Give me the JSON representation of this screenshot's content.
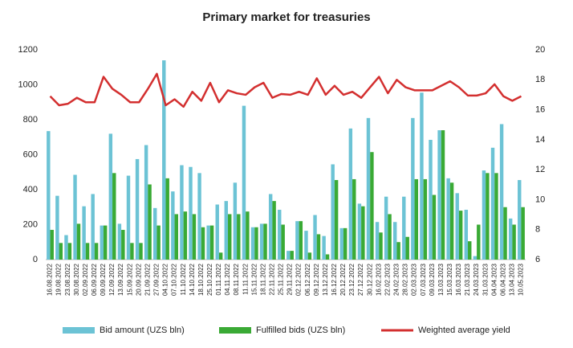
{
  "chart_data": {
    "type": "bar",
    "title": "Primary market for treasuries",
    "categories": [
      "16.08.2022",
      "19.08.2022",
      "23.08.2022",
      "30.08.2022",
      "02.09.2022",
      "06.09.2022",
      "09.09.2022",
      "12.09.2022",
      "13.09.2022",
      "15.09.2022",
      "20.09.2022",
      "21.09.2022",
      "27.09.2022",
      "04.10.2022",
      "07.10.2022",
      "11.10.2022",
      "14.10.2022",
      "18.10.2022",
      "25.10.2022",
      "01.11.2022",
      "04.11.2022",
      "08.11.2022",
      "11.11.2022",
      "15.11.2022",
      "18.11.2022",
      "22.11.2022",
      "25.11.2022",
      "29.11.2022",
      "02.12.2022",
      "06.12.2022",
      "09.12.2022",
      "13.12.2022",
      "16.12.2022",
      "20.12.2022",
      "23.12.2022",
      "27.12.2022",
      "30.12.2022",
      "16.02.2023",
      "22.02.2023",
      "24.02.2023",
      "28.02.2023",
      "02.03.2023",
      "07.03.2023",
      "09.03.2023",
      "13.03.2023",
      "15.03.2023",
      "16.03.2023",
      "21.03.2023",
      "24.03.2023",
      "31.03.2023",
      "04.04.2023",
      "06.04.2023",
      "13.04.2023",
      "10.05.2023"
    ],
    "series": [
      {
        "name": "Bid amount (UZS bln)",
        "color": "#6cc3d5",
        "values": [
          735,
          365,
          140,
          485,
          305,
          375,
          195,
          720,
          205,
          480,
          575,
          655,
          295,
          1140,
          390,
          540,
          530,
          495,
          195,
          315,
          335,
          440,
          880,
          185,
          205,
          375,
          285,
          50,
          220,
          165,
          255,
          135,
          545,
          180,
          750,
          320,
          810,
          215,
          360,
          215,
          360,
          810,
          955,
          685,
          740,
          465,
          380,
          285,
          20,
          510,
          640,
          775,
          235,
          455
        ]
      },
      {
        "name": "Fulfilled bids (UZS bln)",
        "color": "#3aaa35",
        "values": [
          170,
          95,
          95,
          205,
          95,
          95,
          195,
          495,
          170,
          95,
          95,
          430,
          195,
          465,
          260,
          275,
          260,
          185,
          195,
          40,
          260,
          260,
          275,
          185,
          205,
          335,
          200,
          50,
          220,
          40,
          145,
          30,
          455,
          180,
          460,
          305,
          615,
          155,
          260,
          100,
          130,
          460,
          460,
          370,
          740,
          440,
          280,
          105,
          200,
          495,
          495,
          300,
          200,
          300
        ]
      },
      {
        "name": "Weighted average yield",
        "color": "#d32f2f",
        "axis": "y2",
        "type": "line",
        "values": [
          16.9,
          16.3,
          16.4,
          16.8,
          16.5,
          16.5,
          18.2,
          17.4,
          17.0,
          16.5,
          16.5,
          17.4,
          18.4,
          16.3,
          16.7,
          16.2,
          17.2,
          16.6,
          17.8,
          16.5,
          17.3,
          17.1,
          17.0,
          17.5,
          17.8,
          16.8,
          17.05,
          17.0,
          17.2,
          17.0,
          18.1,
          17.0,
          17.6,
          17.0,
          17.2,
          16.8,
          17.5,
          18.2,
          17.1,
          18.0,
          17.5,
          17.3,
          17.3,
          17.3,
          17.6,
          17.9,
          17.5,
          16.95,
          16.95,
          17.1,
          17.7,
          16.9,
          16.6,
          16.9
        ]
      }
    ],
    "ylim": [
      0,
      1200
    ],
    "yticks": [
      0,
      200,
      400,
      600,
      800,
      1000,
      1200
    ],
    "y2lim": [
      6,
      20
    ],
    "y2ticks": [
      6,
      8,
      10,
      12,
      14,
      16,
      18,
      20
    ]
  }
}
